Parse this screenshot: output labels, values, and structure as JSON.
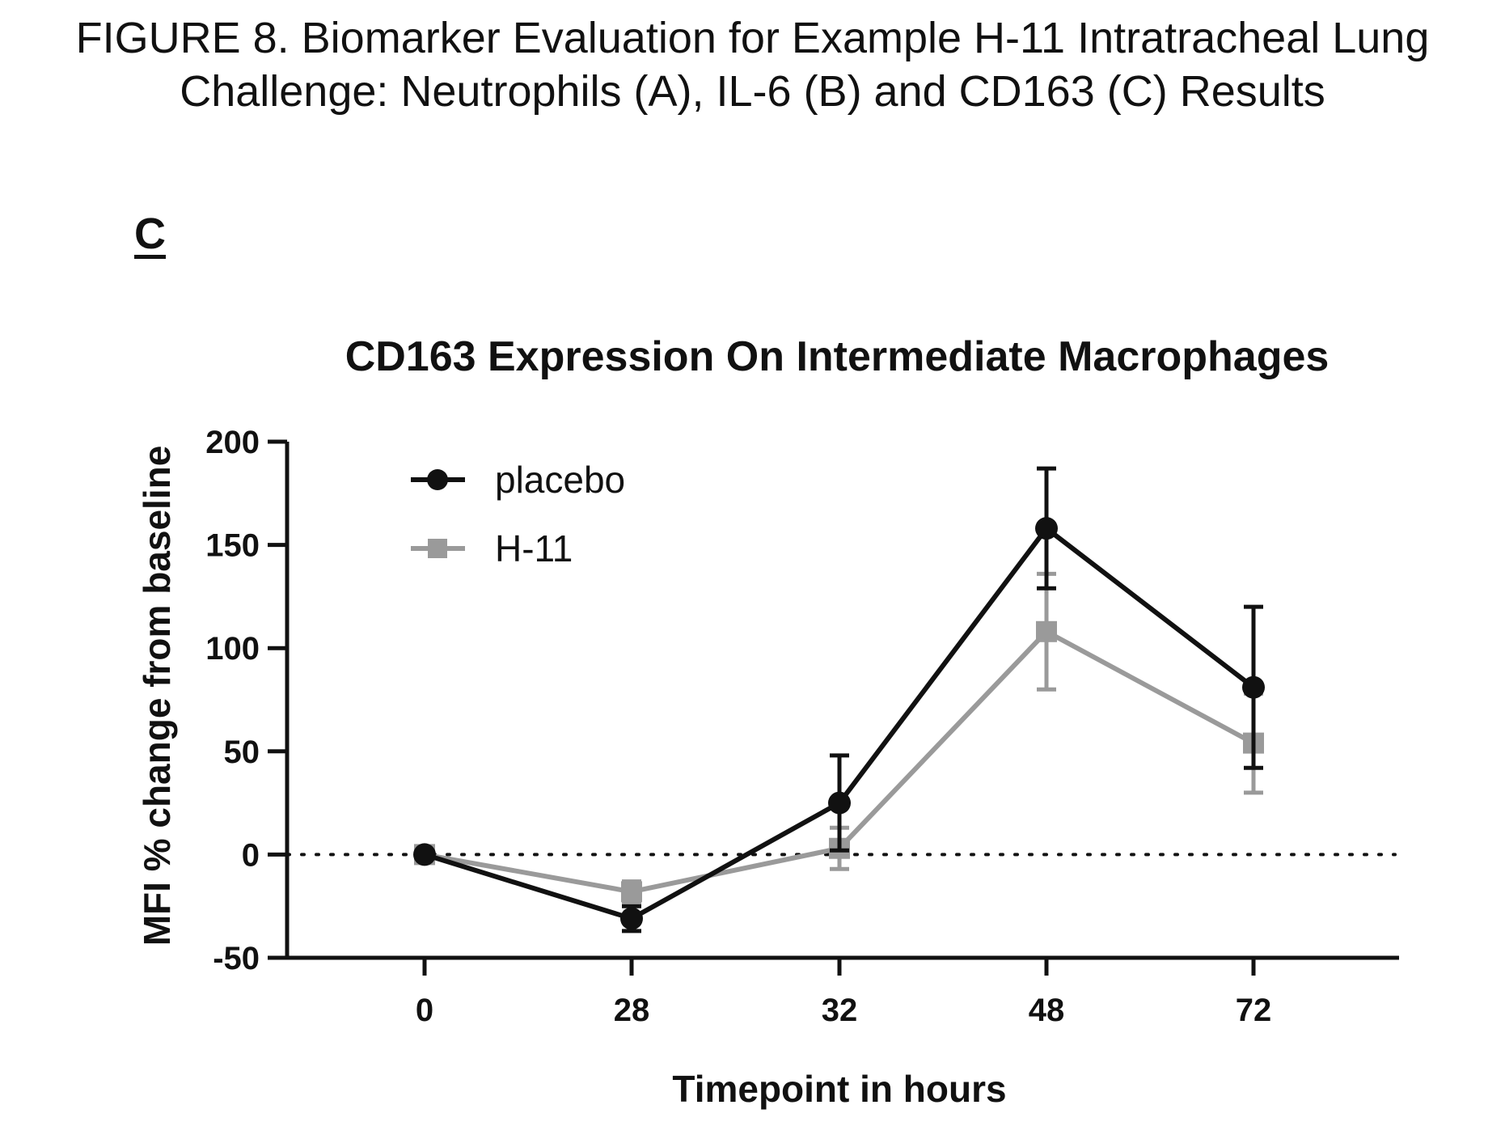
{
  "figure": {
    "title_line1": "FIGURE 8.  Biomarker Evaluation for Example H-11 Intratracheal Lung",
    "title_line2": "Challenge: Neutrophils (A), IL-6 (B) and CD163 (C) Results",
    "panel_label": "C"
  },
  "chart_data": {
    "type": "line",
    "title": "CD163 Expression On Intermediate Macrophages",
    "xlabel": "Timepoint in hours",
    "ylabel": "MFI % change from baseline",
    "categories": [
      "0",
      "28",
      "32",
      "48",
      "72"
    ],
    "ylim": [
      -50,
      200
    ],
    "yticks": [
      200,
      150,
      100,
      50,
      0,
      -50
    ],
    "reference_line": 0,
    "grid": false,
    "legend_position": "top-left",
    "series": [
      {
        "name": "placebo",
        "marker": "circle",
        "color": "#111111",
        "values": [
          0,
          -31,
          25,
          158,
          81
        ],
        "error": [
          0,
          6,
          23,
          29,
          39
        ]
      },
      {
        "name": "H-11",
        "marker": "square",
        "color": "#9a9a9a",
        "values": [
          0,
          -18,
          3,
          108,
          54
        ],
        "error": [
          0,
          5,
          10,
          28,
          24
        ]
      }
    ]
  }
}
